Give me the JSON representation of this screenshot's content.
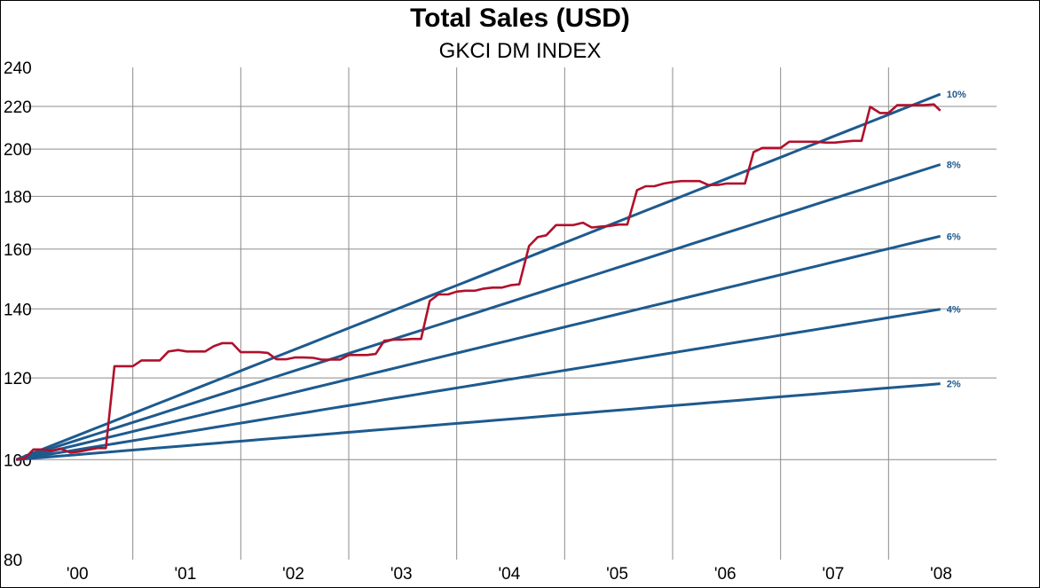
{
  "chart_data": {
    "type": "line",
    "title": "Total Sales (USD)",
    "subtitle": "GKCI DM INDEX",
    "xlabel": "",
    "ylabel": "",
    "yscale": "log",
    "ylim": [
      80,
      240
    ],
    "y_ticks": [
      80,
      100,
      120,
      140,
      160,
      180,
      200,
      220,
      240
    ],
    "x_ticks": [
      "'00",
      "'01",
      "'02",
      "'03",
      "'04",
      "'05",
      "'06",
      "'07",
      "'08"
    ],
    "xlim": [
      2000.0,
      2009.0
    ],
    "grid": true,
    "legend": "none",
    "colors": {
      "sales": "#b0102c",
      "reference": "#1d5a8e",
      "grid": "#8c8c8c"
    },
    "reference_lines": [
      {
        "label": "2%",
        "rate": 0.02
      },
      {
        "label": "4%",
        "rate": 0.04
      },
      {
        "label": "6%",
        "rate": 0.06
      },
      {
        "label": "8%",
        "rate": 0.08
      },
      {
        "label": "10%",
        "rate": 0.1
      }
    ],
    "reference_start": {
      "x": 1999.92,
      "y": 100
    },
    "reference_end_x": 2008.48,
    "series": [
      {
        "type": "step-line",
        "x": [
          1999.92,
          2000.0,
          2000.08,
          2000.17,
          2000.25,
          2000.33,
          2000.42,
          2000.5,
          2000.58,
          2000.67,
          2000.75,
          2000.83,
          2000.92,
          2001.0,
          2001.08,
          2001.17,
          2001.25,
          2001.33,
          2001.42,
          2001.5,
          2001.58,
          2001.67,
          2001.75,
          2001.83,
          2001.92,
          2002.0,
          2002.08,
          2002.17,
          2002.25,
          2002.33,
          2002.42,
          2002.5,
          2002.58,
          2002.67,
          2002.75,
          2002.83,
          2002.92,
          2003.0,
          2003.08,
          2003.17,
          2003.25,
          2003.33,
          2003.42,
          2003.5,
          2003.58,
          2003.67,
          2003.75,
          2003.83,
          2003.92,
          2004.0,
          2004.08,
          2004.17,
          2004.25,
          2004.33,
          2004.42,
          2004.5,
          2004.58,
          2004.67,
          2004.75,
          2004.83,
          2004.92,
          2005.0,
          2005.08,
          2005.17,
          2005.25,
          2005.33,
          2005.42,
          2005.5,
          2005.58,
          2005.67,
          2005.75,
          2005.83,
          2005.92,
          2006.0,
          2006.08,
          2006.17,
          2006.25,
          2006.33,
          2006.42,
          2006.5,
          2006.58,
          2006.67,
          2006.75,
          2006.83,
          2006.92,
          2007.0,
          2007.08,
          2007.17,
          2007.25,
          2007.33,
          2007.42,
          2007.5,
          2007.58,
          2007.67,
          2007.75,
          2007.83,
          2007.92,
          2008.0,
          2008.08,
          2008.17,
          2008.25,
          2008.33,
          2008.42,
          2008.48
        ],
        "y": [
          100,
          100.3,
          102.3,
          102.3,
          102.0,
          102.5,
          101.6,
          101.8,
          102.2,
          102.6,
          102.6,
          123.2,
          123.2,
          123.2,
          124.8,
          124.8,
          124.8,
          127.3,
          127.7,
          127.3,
          127.3,
          127.3,
          128.8,
          129.7,
          129.7,
          127.1,
          127.1,
          127.1,
          126.9,
          125.1,
          125.1,
          125.6,
          125.6,
          125.5,
          125.0,
          125.0,
          125.0,
          126.3,
          126.3,
          126.3,
          126.6,
          130.4,
          130.7,
          130.7,
          130.9,
          130.9,
          142.5,
          144.6,
          144.6,
          145.5,
          145.8,
          145.8,
          146.5,
          146.8,
          146.8,
          147.6,
          147.9,
          161.1,
          164.3,
          165.0,
          168.8,
          168.8,
          168.8,
          169.7,
          167.9,
          168.2,
          168.5,
          169.0,
          169.0,
          182.5,
          184.1,
          184.1,
          185.2,
          185.8,
          186.2,
          186.2,
          186.2,
          184.6,
          184.6,
          185.2,
          185.2,
          185.2,
          198.7,
          200.5,
          200.5,
          200.5,
          203.3,
          203.3,
          203.3,
          203.3,
          202.9,
          202.9,
          203.3,
          203.7,
          203.7,
          219.8,
          216.8,
          216.8,
          220.6,
          220.6,
          220.6,
          220.6,
          221.0,
          217.9
        ]
      }
    ]
  }
}
